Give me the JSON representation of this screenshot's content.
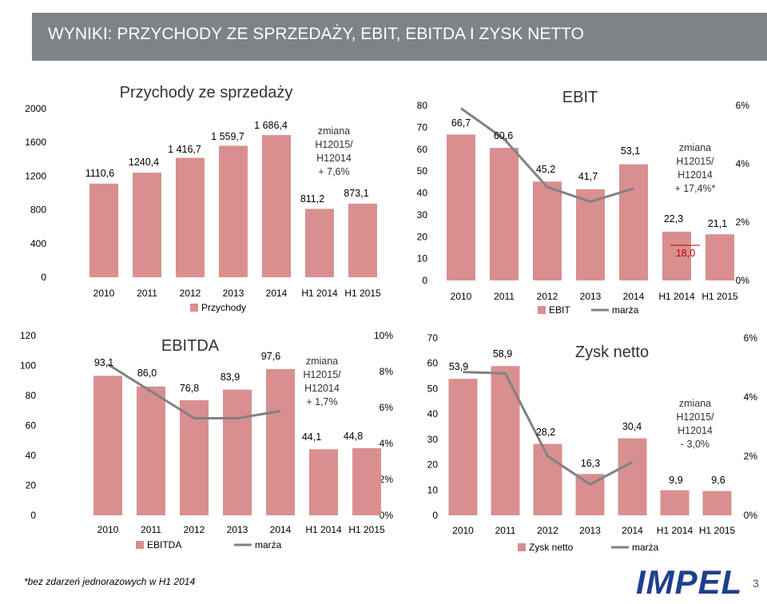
{
  "slide": {
    "title": "WYNIKI: PRZYCHODY ZE SPRZEDAŻY, EBIT, EBITDA I ZYSK NETTO",
    "footnote": "*bez zdarzeń jednorazowych w H1 2014",
    "brand": "IMPEL",
    "page_number": "3"
  },
  "colors": {
    "bar": "#d98f8f",
    "line": "#808285",
    "header": "#7f8286",
    "brand": "#1f3f8f"
  },
  "chart_data": [
    {
      "id": "revenue",
      "type": "bar",
      "title": "Przychody ze sprzedaży",
      "categories": [
        "2010",
        "2011",
        "2012",
        "2013",
        "2014",
        "H1 2014",
        "H1 2015"
      ],
      "values": [
        1110.6,
        1240.4,
        1416.7,
        1559.7,
        1686.4,
        811.2,
        873.1
      ],
      "value_labels": [
        "1110,6",
        "1240,4",
        "1 416,7",
        "1 559,7",
        "1 686,4",
        "811,2",
        "873,1"
      ],
      "ylim": [
        0,
        2000
      ],
      "yticks": [
        0,
        400,
        800,
        1200,
        1600,
        2000
      ],
      "legend": [
        "Przychody"
      ],
      "annotation": [
        "zmiana",
        "H12015/",
        "H12014",
        "+ 7,6%"
      ]
    },
    {
      "id": "ebit",
      "type": "bar+line",
      "title": "EBIT",
      "categories": [
        "2010",
        "2011",
        "2012",
        "2013",
        "2014",
        "H1 2014",
        "H1 2015"
      ],
      "values": [
        66.7,
        60.6,
        45.2,
        41.7,
        53.1,
        22.3,
        21.1
      ],
      "value_labels": [
        "66,7",
        "60,6",
        "45,2",
        "41,7",
        "53,1",
        "22,3",
        "21,1"
      ],
      "extra_label": "18,0",
      "ylim": [
        0,
        80
      ],
      "yticks": [
        0,
        10,
        20,
        30,
        40,
        50,
        60,
        70,
        80
      ],
      "margin_pct": [
        5.9,
        4.85,
        3.2,
        2.7,
        3.15
      ],
      "y2lim": [
        0,
        6
      ],
      "y2ticks": [
        "0%",
        "2%",
        "4%",
        "6%"
      ],
      "legend": [
        "EBIT",
        "marża"
      ],
      "annotation": [
        "zmiana",
        "H12015/",
        "H12014",
        "+ 17,4%*"
      ]
    },
    {
      "id": "ebitda",
      "type": "bar+line",
      "title": "EBITDA",
      "categories": [
        "2010",
        "2011",
        "2012",
        "2013",
        "2014",
        "H1 2014",
        "H1 2015"
      ],
      "values": [
        93.1,
        86.0,
        76.8,
        83.9,
        97.6,
        44.1,
        44.8
      ],
      "value_labels": [
        "93,1",
        "86,0",
        "76,8",
        "83,9",
        "97,6",
        "44,1",
        "44,8"
      ],
      "ylim": [
        0,
        120
      ],
      "yticks": [
        0,
        20,
        40,
        60,
        80,
        100,
        120
      ],
      "margin_pct": [
        8.4,
        6.9,
        5.4,
        5.4,
        5.8
      ],
      "y2lim": [
        0,
        10
      ],
      "y2ticks": [
        "0%",
        "2%",
        "4%",
        "6%",
        "8%",
        "10%"
      ],
      "legend": [
        "EBITDA",
        "marża"
      ],
      "annotation": [
        "zmiana",
        "H12015/",
        "H12014",
        "+ 1,7%"
      ]
    },
    {
      "id": "net",
      "type": "bar+line",
      "title": "Zysk netto",
      "categories": [
        "2010",
        "2011",
        "2012",
        "2013",
        "2014",
        "H1 2014",
        "H1 2015"
      ],
      "values": [
        53.9,
        58.9,
        28.2,
        16.3,
        30.4,
        9.9,
        9.6
      ],
      "value_labels": [
        "53,9",
        "58,9",
        "28,2",
        "16,3",
        "30,4",
        "9,9",
        "9,6"
      ],
      "ylim": [
        0,
        70
      ],
      "yticks": [
        0,
        10,
        20,
        30,
        40,
        50,
        60,
        70
      ],
      "margin_pct": [
        4.85,
        4.8,
        2.0,
        1.05,
        1.8
      ],
      "y2lim": [
        0,
        6
      ],
      "y2ticks": [
        "0%",
        "2%",
        "4%",
        "6%"
      ],
      "legend": [
        "Zysk netto",
        "marża"
      ],
      "annotation": [
        "zmiana",
        "H12015/",
        "H12014",
        "- 3,0%"
      ]
    }
  ]
}
